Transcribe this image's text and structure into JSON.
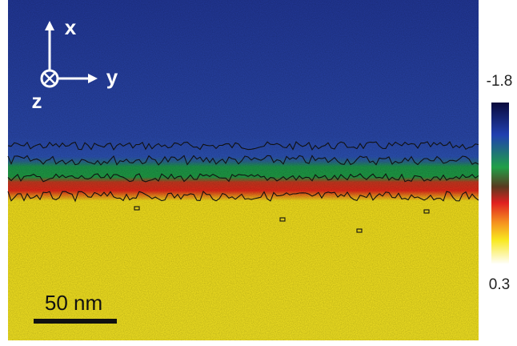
{
  "axes": {
    "x": "x",
    "y": "y",
    "z": "z"
  },
  "scale_bar": "50 nm",
  "colorbar": {
    "top_label": "-1.8",
    "bottom_label": "0.3"
  }
}
